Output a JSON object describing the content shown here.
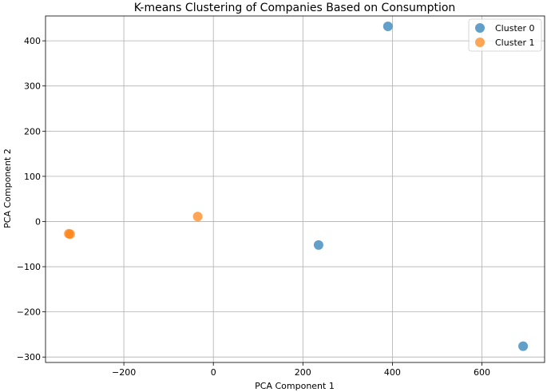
{
  "chart_data": {
    "type": "scatter",
    "title": "K-means Clustering of Companies Based on Consumption",
    "xlabel": "PCA Component 1",
    "ylabel": "PCA Component 2",
    "xlim": [
      -375,
      740
    ],
    "ylim": [
      -312,
      455
    ],
    "xticks": [
      -200,
      0,
      200,
      400,
      600
    ],
    "yticks": [
      -300,
      -200,
      -100,
      0,
      100,
      200,
      300,
      400
    ],
    "xtick_labels": [
      "−200",
      "0",
      "200",
      "400",
      "600"
    ],
    "ytick_labels": [
      "−300",
      "−200",
      "−100",
      "0",
      "100",
      "200",
      "300",
      "400"
    ],
    "grid": true,
    "legend_position": "top-right",
    "series": [
      {
        "name": "Cluster 0",
        "color": "#1f77b4",
        "points": [
          {
            "x": 390,
            "y": 432
          },
          {
            "x": 235,
            "y": -52
          },
          {
            "x": 692,
            "y": -276
          }
        ]
      },
      {
        "name": "Cluster 1",
        "color": "#ff7f0e",
        "points": [
          {
            "x": -35,
            "y": 11
          },
          {
            "x": -323,
            "y": -27
          },
          {
            "x": -320,
            "y": -28
          }
        ]
      }
    ]
  }
}
